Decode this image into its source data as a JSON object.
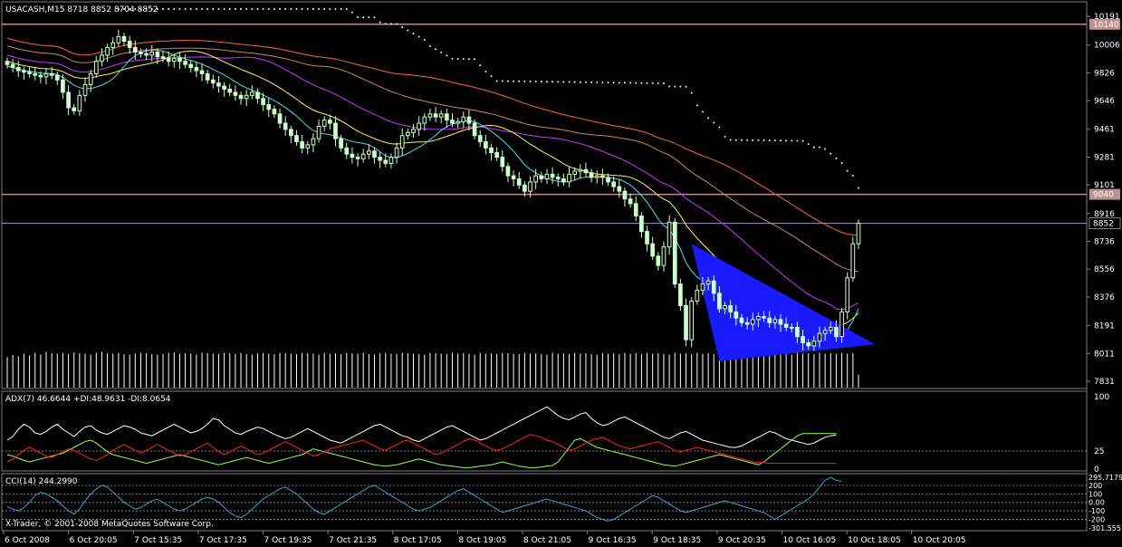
{
  "symbol_header": "USACASH,M15  8718 8852 8704 8852",
  "adx_header": "ADX(7) 46.6644 +DI:48.9631 -DI:8.0654",
  "cci_header": "CCI(14) 244.2990",
  "copyright": "X-Trader, © 2001-2008 MetaQuotes Software Corp.",
  "colors": {
    "background": "#000000",
    "candle_bull": "#000000",
    "candle_bear": "#ccffcc",
    "level_line": "#c09090",
    "bid_line": "#9999cc",
    "triangle": "#1a1aff",
    "parabolic_sar": "#e0f8ff",
    "ma_red": "#ff6633",
    "ma_brown": "#cc8855",
    "ma_magenta": "#cc33ff",
    "ma_yellow": "#ffee66",
    "ma_cyan": "#44ddee",
    "adx_line": "#ffffff",
    "plus_di": "#99ff44",
    "minus_di": "#ff2222",
    "cci_line": "#33aacc",
    "volume": "#ffffff"
  },
  "chart_data": [
    {
      "type": "candlestick",
      "name": "USACASH,M15",
      "y_ticks": [
        "10191",
        "10006",
        "9826",
        "9646",
        "9461",
        "9281",
        "9101",
        "8916",
        "8736",
        "8556",
        "8376",
        "8191",
        "8011",
        "7831"
      ],
      "ylim": [
        7790,
        10250
      ],
      "x_tick_labels": [
        "6 Oct 2008",
        "6 Oct 20:05",
        "7 Oct 15:35",
        "7 Oct 17:35",
        "7 Oct 19:35",
        "7 Oct 21:35",
        "8 Oct 17:05",
        "8 Oct 19:05",
        "8 Oct 21:05",
        "9 Oct 16:35",
        "9 Oct 18:35",
        "9 Oct 20:35",
        "10 Oct 16:05",
        "10 Oct 18:05",
        "10 Oct 20:05"
      ],
      "levels": [
        {
          "value": 10140,
          "label": "10140"
        },
        {
          "value": 9040,
          "label": "9040"
        }
      ],
      "bid": {
        "value": 8852,
        "label": "8852"
      },
      "triangle": [
        [
          123,
          8720
        ],
        [
          128,
          7960
        ],
        [
          156,
          8070
        ]
      ],
      "closes": [
        9880,
        9860,
        9840,
        9830,
        9820,
        9810,
        9800,
        9820,
        9810,
        9780,
        9700,
        9600,
        9580,
        9680,
        9750,
        9820,
        9900,
        9940,
        9990,
        10020,
        10060,
        10030,
        9990,
        9960,
        9950,
        9940,
        9960,
        9930,
        9920,
        9900,
        9920,
        9900,
        9880,
        9860,
        9840,
        9820,
        9780,
        9760,
        9740,
        9720,
        9700,
        9680,
        9660,
        9680,
        9700,
        9660,
        9620,
        9590,
        9560,
        9500,
        9460,
        9420,
        9380,
        9340,
        9360,
        9400,
        9480,
        9520,
        9500,
        9400,
        9340,
        9300,
        9280,
        9270,
        9300,
        9320,
        9280,
        9260,
        9240,
        9280,
        9340,
        9420,
        9440,
        9460,
        9500,
        9540,
        9560,
        9540,
        9560,
        9520,
        9500,
        9510,
        9540,
        9500,
        9420,
        9380,
        9340,
        9310,
        9280,
        9220,
        9160,
        9140,
        9100,
        9060,
        9120,
        9160,
        9140,
        9170,
        9150,
        9140,
        9120,
        9170,
        9190,
        9200,
        9180,
        9150,
        9160,
        9150,
        9120,
        9090,
        9060,
        9010,
        8980,
        8900,
        8800,
        8720,
        8640,
        8580,
        8700,
        8860,
        8460,
        8320,
        8100,
        8350,
        8420,
        8460,
        8480,
        8400,
        8300,
        8320,
        8280,
        8240,
        8210,
        8200,
        8230,
        8250,
        8240,
        8210,
        8230,
        8200,
        8180,
        8180,
        8120,
        8080,
        8060,
        8090,
        8140,
        8160,
        8180,
        8120,
        8280,
        8500,
        8720,
        8852
      ],
      "volume_relative": [
        0.7,
        0.75,
        0.72,
        0.78,
        0.74,
        0.8,
        0.76,
        0.82,
        0.79,
        0.78,
        0.8,
        0.77,
        0.81,
        0.79,
        0.78,
        0.76,
        0.8,
        0.82,
        0.79,
        0.78,
        0.8,
        0.77,
        0.76,
        0.78,
        0.8,
        0.79,
        0.77,
        0.76,
        0.78,
        0.8,
        0.81,
        0.77,
        0.79,
        0.78,
        0.76,
        0.8,
        0.79,
        0.78,
        0.77,
        0.8,
        0.79,
        0.78,
        0.8,
        0.77,
        0.76,
        0.79,
        0.8,
        0.78,
        0.77,
        0.8,
        0.79,
        0.78,
        0.77,
        0.8,
        0.79,
        0.78,
        0.76,
        0.8,
        0.78,
        0.79,
        0.77,
        0.8,
        0.79,
        0.78,
        0.8,
        0.77,
        0.76,
        0.79,
        0.8,
        0.78,
        0.77,
        0.8,
        0.79,
        0.78,
        0.77,
        0.76,
        0.8,
        0.79,
        0.78,
        0.77,
        0.8,
        0.78,
        0.79,
        0.77,
        0.76,
        0.8,
        0.78,
        0.79,
        0.77,
        0.8,
        0.79,
        0.78,
        0.77,
        0.8,
        0.78,
        0.79,
        0.77,
        0.76,
        0.8,
        0.78,
        0.79,
        0.77,
        0.8,
        0.78,
        0.79,
        0.77,
        0.76,
        0.8,
        0.78,
        0.79,
        0.77,
        0.8,
        0.78,
        0.79,
        0.77,
        0.8,
        0.78,
        0.79,
        0.77,
        0.76,
        0.8,
        0.78,
        0.79,
        0.77,
        0.8,
        0.78,
        0.79,
        0.77,
        0.76,
        0.8,
        0.78,
        0.79,
        0.77,
        0.8,
        0.78,
        0.79,
        0.77,
        0.8,
        0.78,
        0.79,
        0.77,
        0.76,
        0.8,
        0.78,
        0.79,
        0.77,
        0.8,
        0.78,
        0.79,
        0.77,
        0.8,
        0.78,
        0.79,
        0.3
      ]
    },
    {
      "type": "line",
      "name": "ADX(7)",
      "y_ticks": [
        "100",
        "25",
        "0"
      ],
      "ylim": [
        0,
        100
      ],
      "series": [
        {
          "name": "ADX",
          "values": [
            40,
            45,
            55,
            62,
            58,
            50,
            48,
            52,
            58,
            62,
            55,
            50,
            45,
            52,
            58,
            60,
            54,
            50,
            48,
            52,
            56,
            60,
            58,
            55,
            50,
            48,
            46,
            50,
            54,
            58,
            62,
            58,
            54,
            50,
            52,
            56,
            62,
            70,
            68,
            60,
            55,
            50,
            48,
            52,
            55,
            58,
            56,
            52,
            48,
            45,
            42,
            44,
            48,
            52,
            56,
            52,
            48,
            44,
            40,
            38,
            36,
            40,
            44,
            48,
            52,
            56,
            60,
            62,
            58,
            54,
            50,
            46,
            44,
            40,
            38,
            42,
            46,
            50,
            54,
            58,
            60,
            56,
            52,
            48,
            44,
            40,
            42,
            46,
            50,
            54,
            58,
            62,
            66,
            70,
            74,
            78,
            82,
            86,
            80,
            74,
            70,
            68,
            72,
            76,
            78,
            70,
            64,
            60,
            62,
            66,
            70,
            72,
            68,
            64,
            60,
            56,
            52,
            48,
            44,
            42,
            46,
            50,
            52,
            48,
            44,
            40,
            38,
            36,
            34,
            32,
            30,
            30,
            32,
            36,
            40,
            44,
            48,
            52,
            50,
            46,
            42,
            40,
            38,
            36,
            34,
            36,
            40,
            44,
            46,
            47
          ]
        },
        {
          "name": "+DI",
          "values": [
            20,
            18,
            15,
            12,
            10,
            12,
            14,
            16,
            18,
            20,
            22,
            26,
            30,
            34,
            38,
            40,
            36,
            30,
            24,
            20,
            18,
            16,
            14,
            12,
            10,
            8,
            10,
            12,
            14,
            16,
            18,
            20,
            18,
            16,
            14,
            12,
            10,
            8,
            6,
            8,
            10,
            12,
            14,
            16,
            14,
            12,
            10,
            8,
            10,
            12,
            14,
            16,
            18,
            20,
            24,
            28,
            26,
            24,
            22,
            20,
            18,
            16,
            14,
            12,
            10,
            8,
            6,
            5,
            4,
            5,
            6,
            8,
            10,
            12,
            14,
            12,
            10,
            8,
            6,
            5,
            4,
            3,
            2,
            2,
            3,
            4,
            5,
            6,
            8,
            10,
            8,
            6,
            4,
            3,
            2,
            2,
            3,
            4,
            5,
            10,
            20,
            30,
            40,
            42,
            38,
            34,
            30,
            28,
            26,
            24,
            22,
            20,
            18,
            16,
            14,
            12,
            10,
            8,
            6,
            5,
            4,
            6,
            8,
            10,
            12,
            14,
            16,
            18,
            20,
            18,
            16,
            14,
            12,
            10,
            8,
            6,
            10,
            16,
            22,
            28,
            34,
            40,
            46,
            49,
            49,
            49,
            49,
            49,
            49,
            49
          ]
        },
        {
          "name": "-DI",
          "values": [
            10,
            14,
            20,
            26,
            30,
            26,
            22,
            18,
            16,
            20,
            24,
            28,
            26,
            22,
            18,
            14,
            12,
            16,
            20,
            26,
            30,
            34,
            30,
            26,
            22,
            26,
            30,
            34,
            30,
            26,
            22,
            18,
            20,
            24,
            28,
            32,
            36,
            30,
            24,
            20,
            24,
            28,
            32,
            28,
            24,
            20,
            22,
            26,
            30,
            34,
            38,
            34,
            30,
            26,
            22,
            18,
            20,
            24,
            28,
            30,
            32,
            34,
            36,
            38,
            40,
            36,
            32,
            28,
            26,
            30,
            34,
            38,
            40,
            36,
            32,
            28,
            24,
            20,
            22,
            26,
            30,
            34,
            38,
            42,
            40,
            36,
            32,
            28,
            26,
            28,
            32,
            36,
            40,
            44,
            48,
            46,
            44,
            40,
            38,
            34,
            30,
            26,
            28,
            32,
            36,
            40,
            42,
            44,
            40,
            36,
            32,
            30,
            28,
            30,
            32,
            34,
            36,
            38,
            34,
            30,
            26,
            24,
            26,
            28,
            30,
            28,
            26,
            24,
            22,
            20,
            18,
            16,
            14,
            12,
            10,
            9,
            9,
            8,
            8,
            8,
            8,
            8,
            8,
            8,
            8,
            8,
            8,
            8,
            8,
            8
          ]
        }
      ]
    },
    {
      "type": "line",
      "name": "CCI(14)",
      "y_ticks": [
        "295.7179",
        "200",
        "100",
        "0.00",
        "-100",
        "-200",
        "-301.5553"
      ],
      "ylim": [
        -301.5553,
        295.7179
      ],
      "series": [
        {
          "name": "CCI",
          "values": [
            -50,
            -80,
            -100,
            -60,
            0,
            80,
            120,
            100,
            60,
            20,
            -40,
            -100,
            -140,
            -80,
            20,
            100,
            160,
            200,
            180,
            120,
            60,
            0,
            -40,
            -80,
            -60,
            -20,
            20,
            40,
            0,
            -40,
            -80,
            -100,
            -80,
            -40,
            0,
            40,
            60,
            40,
            0,
            -60,
            -120,
            -160,
            -180,
            -140,
            -80,
            -20,
            40,
            80,
            120,
            160,
            180,
            140,
            100,
            40,
            -20,
            -80,
            -120,
            -140,
            -100,
            -60,
            -20,
            20,
            60,
            100,
            140,
            180,
            200,
            160,
            120,
            80,
            40,
            0,
            -40,
            -80,
            -100,
            -80,
            -60,
            -20,
            20,
            60,
            100,
            140,
            160,
            120,
            80,
            40,
            0,
            -40,
            -80,
            -120,
            -100,
            -80,
            -60,
            -40,
            -20,
            0,
            20,
            40,
            20,
            0,
            -20,
            -40,
            -60,
            -80,
            -100,
            -140,
            -180,
            -200,
            -220,
            -200,
            -160,
            -120,
            -80,
            -40,
            0,
            40,
            80,
            60,
            20,
            -20,
            -60,
            -100,
            -120,
            -100,
            -80,
            -60,
            -40,
            -20,
            0,
            20,
            0,
            -20,
            -40,
            -60,
            -80,
            -100,
            -120,
            -160,
            -200,
            -160,
            -120,
            -80,
            -40,
            0,
            40,
            100,
            180,
            260,
            295,
            260,
            244
          ]
        }
      ]
    }
  ]
}
